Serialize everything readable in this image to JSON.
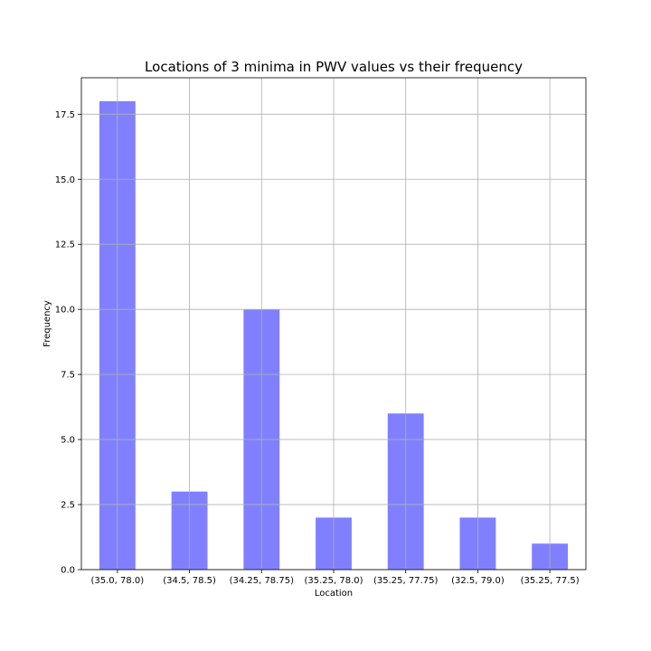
{
  "chart_data": {
    "type": "bar",
    "title": "Locations of 3 minima in PWV values vs their frequency",
    "xlabel": "Location",
    "ylabel": "Frequency",
    "categories": [
      "(35.0, 78.0)",
      "(34.5, 78.5)",
      "(34.25, 78.75)",
      "(35.25, 78.0)",
      "(35.25, 77.75)",
      "(32.5, 79.0)",
      "(35.25, 77.5)"
    ],
    "values": [
      18,
      3,
      10,
      2,
      6,
      2,
      1
    ],
    "ylim": [
      0,
      18.9
    ],
    "yticks": [
      0.0,
      2.5,
      5.0,
      7.5,
      10.0,
      12.5,
      15.0,
      17.5
    ],
    "ytick_labels": [
      "0.0",
      "2.5",
      "5.0",
      "7.5",
      "10.0",
      "12.5",
      "15.0",
      "17.5"
    ],
    "grid": true,
    "bar_color": "#8080ff"
  }
}
